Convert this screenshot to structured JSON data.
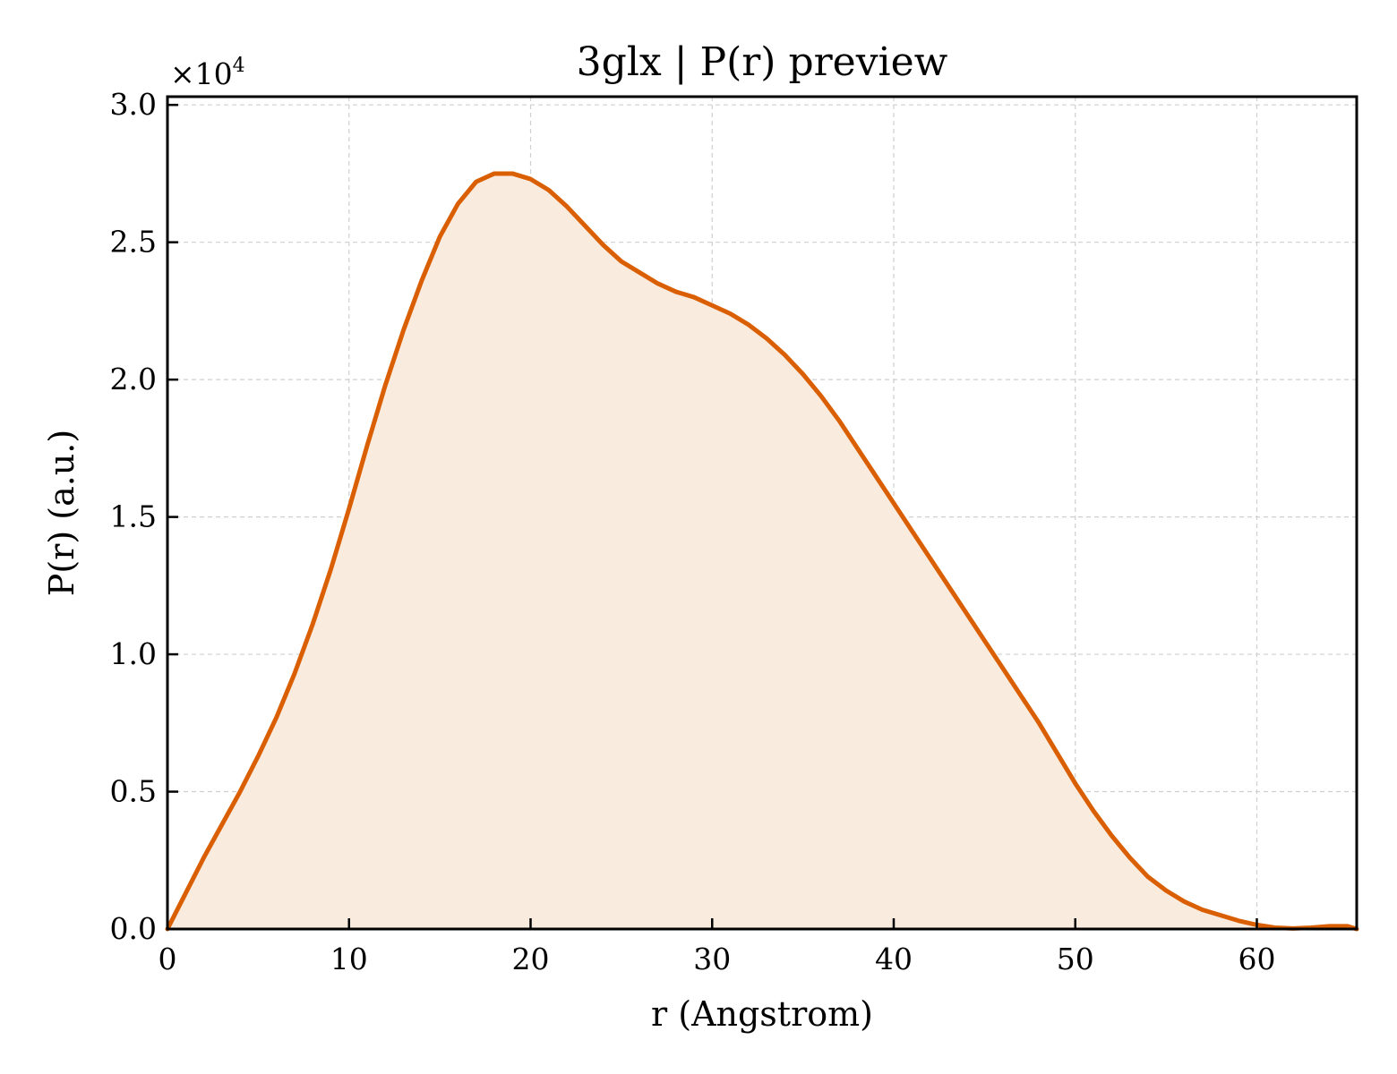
{
  "chart_data": {
    "type": "area",
    "title": "3glx | P(r) preview",
    "xlabel": "r (Angstrom)",
    "ylabel": "P(r) (a.u.)",
    "y_offset_label": "×10",
    "y_offset_exponent": "4",
    "xlim": [
      0,
      65.5
    ],
    "ylim": [
      0,
      3.03
    ],
    "x_ticks": [
      0,
      10,
      20,
      30,
      40,
      50,
      60
    ],
    "x_tick_labels": [
      "0",
      "10",
      "20",
      "30",
      "40",
      "50",
      "60"
    ],
    "y_ticks": [
      0,
      0.5,
      1.0,
      1.5,
      2.0,
      2.5,
      3.0
    ],
    "y_tick_labels": [
      "0.0",
      "0.5",
      "1.0",
      "1.5",
      "2.0",
      "2.5",
      "3.0"
    ],
    "grid": true,
    "line_color": "#d95f02",
    "fill_color": "#faebdf",
    "series": [
      {
        "x": [
          0,
          1,
          2,
          3,
          4,
          5,
          6,
          7,
          8,
          9,
          10,
          11,
          12,
          13,
          14,
          15,
          16,
          17,
          18,
          19,
          20,
          21,
          22,
          23,
          24,
          25,
          26,
          27,
          28,
          29,
          30,
          31,
          32,
          33,
          34,
          35,
          36,
          37,
          38,
          39,
          40,
          41,
          42,
          43,
          44,
          45,
          46,
          47,
          48,
          49,
          50,
          51,
          52,
          53,
          54,
          55,
          56,
          57,
          58,
          59,
          60,
          61,
          62,
          63,
          64,
          65,
          65.5
        ],
        "y": [
          0.0,
          0.13,
          0.26,
          0.38,
          0.5,
          0.63,
          0.77,
          0.93,
          1.11,
          1.31,
          1.53,
          1.76,
          1.98,
          2.18,
          2.36,
          2.52,
          2.64,
          2.72,
          2.75,
          2.75,
          2.73,
          2.69,
          2.63,
          2.56,
          2.49,
          2.43,
          2.39,
          2.35,
          2.32,
          2.3,
          2.27,
          2.24,
          2.2,
          2.15,
          2.09,
          2.02,
          1.94,
          1.85,
          1.75,
          1.65,
          1.55,
          1.45,
          1.35,
          1.25,
          1.15,
          1.05,
          0.95,
          0.85,
          0.75,
          0.64,
          0.53,
          0.43,
          0.34,
          0.26,
          0.19,
          0.14,
          0.1,
          0.07,
          0.05,
          0.03,
          0.015,
          0.005,
          0.002,
          0.005,
          0.01,
          0.01,
          0.0
        ]
      }
    ]
  }
}
